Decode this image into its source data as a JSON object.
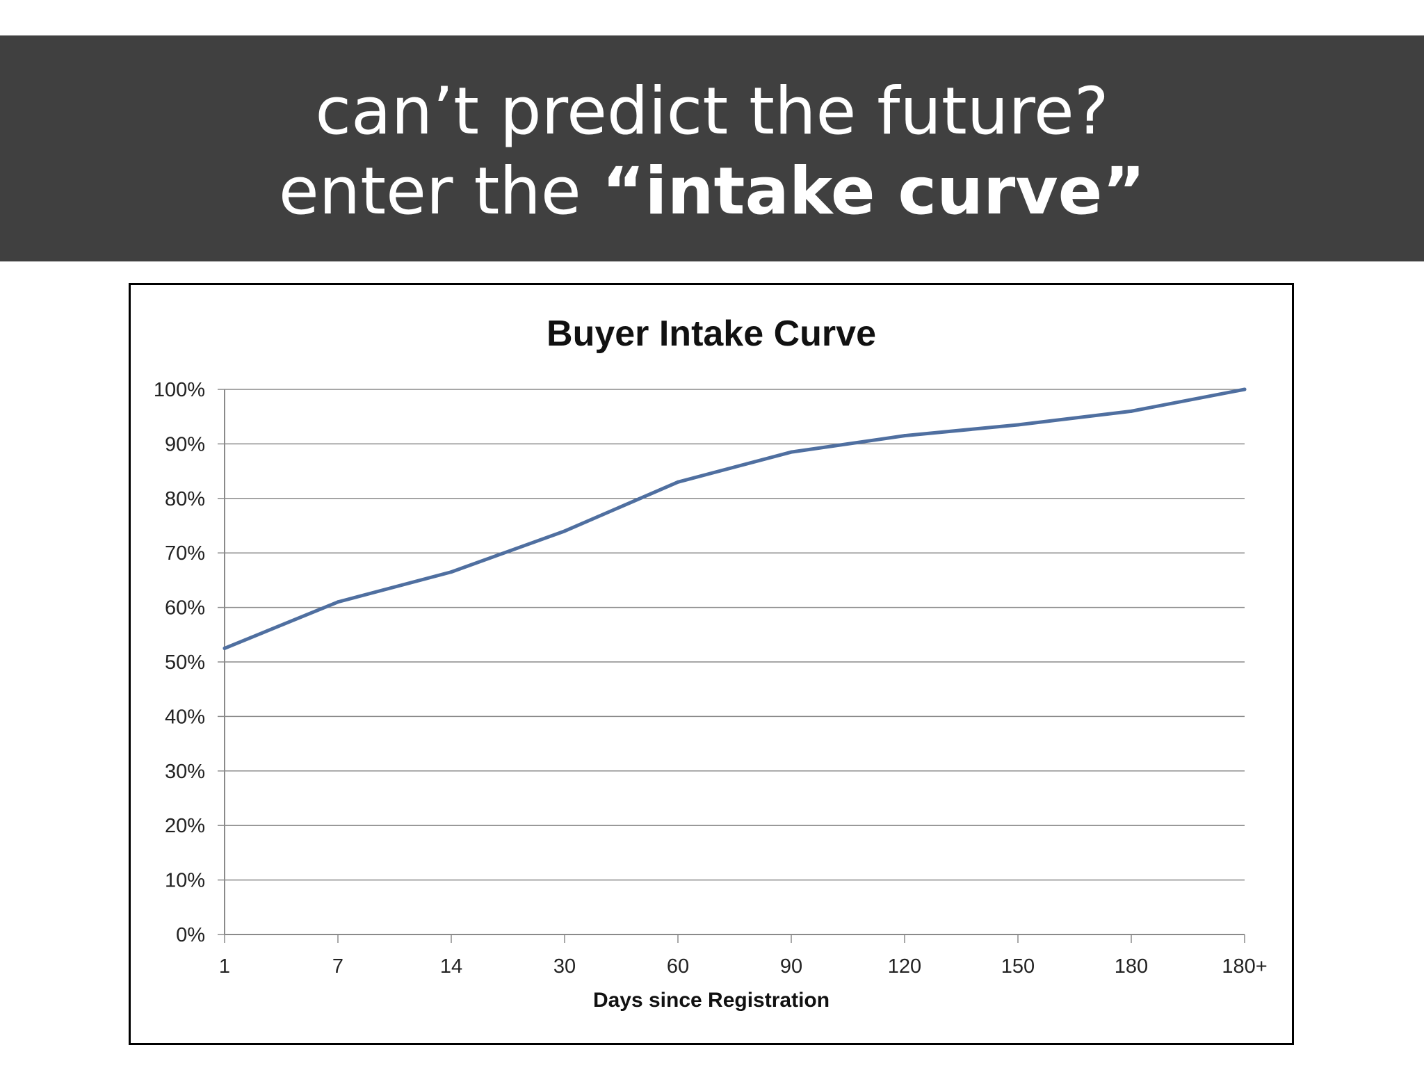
{
  "slide": {
    "title_line1": "can’t predict the future?",
    "title_line2_prefix": "enter the ",
    "title_line2_bold": "“intake curve”"
  },
  "colors": {
    "banner_bg": "#404040",
    "line": "#4f6fa0",
    "grid": "#8a8a8a"
  },
  "chart_data": {
    "type": "line",
    "title": "Buyer Intake Curve",
    "xlabel": "Days since Registration",
    "ylabel": "",
    "categories": [
      "1",
      "7",
      "14",
      "30",
      "60",
      "90",
      "120",
      "150",
      "180",
      "180+"
    ],
    "series": [
      {
        "values": [
          52.5,
          61,
          66.5,
          74,
          83,
          88.5,
          91.5,
          93.5,
          96,
          100
        ]
      }
    ],
    "ylim": [
      0,
      100
    ],
    "y_ticks": [
      "0%",
      "10%",
      "20%",
      "30%",
      "40%",
      "50%",
      "60%",
      "70%",
      "80%",
      "90%",
      "100%"
    ],
    "grid": true,
    "legend": "none"
  }
}
